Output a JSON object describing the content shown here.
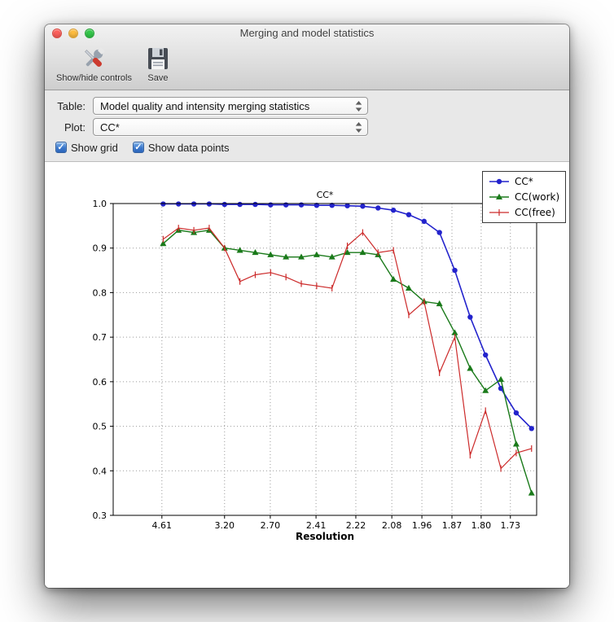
{
  "icons": {
    "check": "✓"
  },
  "window": {
    "title": "Merging and model statistics",
    "toolbar": {
      "buttons": [
        {
          "label": "Show/hide controls"
        },
        {
          "label": "Save"
        }
      ]
    },
    "controls": {
      "table_label": "Table:",
      "table_value": "Model quality and intensity merging statistics",
      "plot_label": "Plot:",
      "plot_value": "CC*",
      "checkboxes": [
        {
          "label": "Show grid",
          "checked": true
        },
        {
          "label": "Show data points",
          "checked": true
        }
      ]
    }
  },
  "chart_data": {
    "type": "line",
    "title": "CC*",
    "xlabel": "Resolution",
    "ylabel": "",
    "ylim": [
      0.3,
      1.0
    ],
    "yticks": [
      0.3,
      0.4,
      0.5,
      0.6,
      0.7,
      0.8,
      0.9,
      1.0
    ],
    "grid": true,
    "grid_color": "#9a9a9a",
    "legend_position": "upper right",
    "x_start_f": 0.118,
    "x_end_f": 0.988,
    "xticks": [
      {
        "label": "4.61",
        "f": 0.115
      },
      {
        "label": "3.20",
        "f": 0.263
      },
      {
        "label": "2.70",
        "f": 0.371
      },
      {
        "label": "2.41",
        "f": 0.479
      },
      {
        "label": "2.22",
        "f": 0.573
      },
      {
        "label": "2.08",
        "f": 0.658
      },
      {
        "label": "1.96",
        "f": 0.729
      },
      {
        "label": "1.87",
        "f": 0.8
      },
      {
        "label": "1.80",
        "f": 0.869
      },
      {
        "label": "1.73",
        "f": 0.938
      }
    ],
    "series": [
      {
        "name": "CC*",
        "color": "#2323cc",
        "marker": "circle",
        "width": 1.6,
        "values": [
          0.999,
          0.999,
          0.999,
          0.999,
          0.998,
          0.998,
          0.998,
          0.997,
          0.997,
          0.997,
          0.996,
          0.996,
          0.995,
          0.994,
          0.99,
          0.985,
          0.975,
          0.96,
          0.935,
          0.85,
          0.745,
          0.66,
          0.585,
          0.53,
          0.495
        ]
      },
      {
        "name": "CC(work)",
        "color": "#1a7a1a",
        "marker": "triangle",
        "width": 1.4,
        "values": [
          0.91,
          0.94,
          0.935,
          0.94,
          0.9,
          0.895,
          0.89,
          0.885,
          0.88,
          0.88,
          0.885,
          0.88,
          0.89,
          0.89,
          0.885,
          0.83,
          0.81,
          0.78,
          0.775,
          0.71,
          0.63,
          0.58,
          0.605,
          0.46,
          0.35
        ]
      },
      {
        "name": "CC(free)",
        "color": "#cc2a2a",
        "marker": "vline",
        "width": 1.2,
        "values": [
          0.92,
          0.945,
          0.94,
          0.945,
          0.9,
          0.825,
          0.84,
          0.845,
          0.835,
          0.82,
          0.815,
          0.81,
          0.905,
          0.935,
          0.89,
          0.895,
          0.75,
          0.78,
          0.62,
          0.7,
          0.435,
          0.535,
          0.405,
          0.44,
          0.45
        ]
      }
    ]
  }
}
